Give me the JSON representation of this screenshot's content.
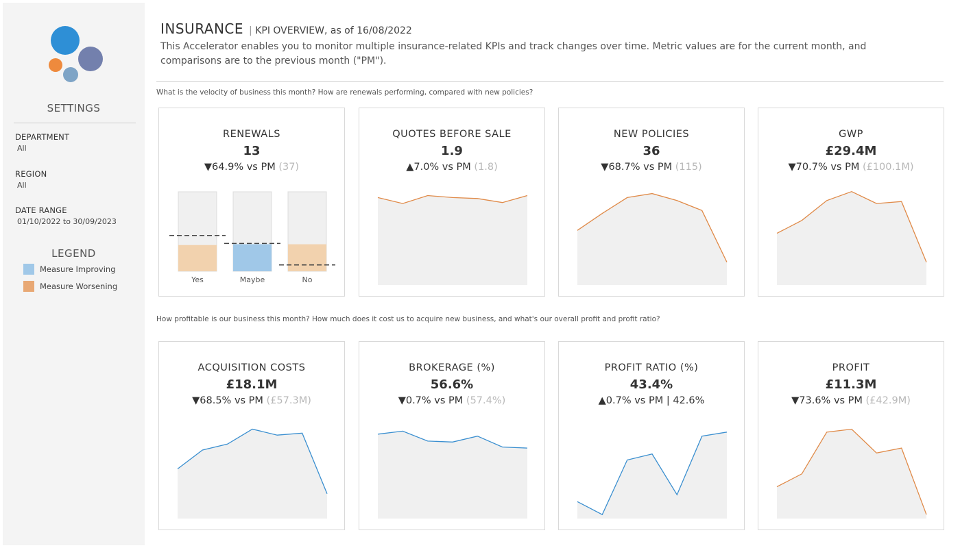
{
  "sidebar": {
    "settings_title": "SETTINGS",
    "filters": [
      {
        "label": "DEPARTMENT",
        "value": "All"
      },
      {
        "label": "REGION",
        "value": "All"
      },
      {
        "label": "DATE RANGE",
        "value": "01/10/2022 to 30/09/2023"
      }
    ],
    "legend_title": "LEGEND",
    "legend": [
      {
        "label": "Measure Improving",
        "color": "#a0c8e8"
      },
      {
        "label": "Measure Worsening",
        "color": "#e8a874"
      }
    ]
  },
  "header": {
    "title": "INSURANCE",
    "separator": "|",
    "subtitle": "KPI OVERVIEW, as of 16/08/2022",
    "description": "This Accelerator enables you to monitor multiple insurance-related KPIs and track changes over time. Metric values are for the current month, and comparisons are to the previous month (\"PM\")."
  },
  "questions": {
    "q1": "What is the velocity of business this month? How are renewals performing, compared with new policies?",
    "q2": "How profitable is our business this month? How much does it cost us to acquire new business, and what's our overall profit and profit ratio?"
  },
  "colors": {
    "improving_line": "#3a8fd0",
    "worsening_line": "#e08a48",
    "area_fill": "#f0f0f0",
    "bar_worse": "#f2d2ae",
    "bar_better": "#a0c8e8",
    "bar_track": "#f0f0f0"
  },
  "cards": [
    {
      "title": "RENEWALS",
      "value": "13",
      "arrow": "▼",
      "change": "64.9% vs PM",
      "prev": "(37)",
      "chart_data": {
        "type": "bar",
        "categories": [
          "Yes",
          "Maybe",
          "No"
        ],
        "values": [
          0.33,
          0.34,
          0.34
        ],
        "reference": [
          0.45,
          0.35,
          0.08
        ],
        "status": [
          "worsening",
          "improving",
          "worsening"
        ]
      }
    },
    {
      "title": "QUOTES BEFORE SALE",
      "value": "1.9",
      "arrow": "▲",
      "change": "7.0% vs PM",
      "prev": "(1.8)",
      "chart_data": {
        "type": "area",
        "trend": "worsening",
        "values": [
          0.88,
          0.82,
          0.9,
          0.88,
          0.87,
          0.83,
          0.9
        ]
      }
    },
    {
      "title": "NEW POLICIES",
      "value": "36",
      "arrow": "▼",
      "change": "68.7% vs PM",
      "prev": "(115)",
      "chart_data": {
        "type": "area",
        "trend": "worsening",
        "values": [
          0.55,
          0.72,
          0.88,
          0.92,
          0.85,
          0.75,
          0.23
        ]
      }
    },
    {
      "title": "GWP",
      "value": "£29.4M",
      "arrow": "▼",
      "change": "70.7% vs PM",
      "prev": "(£100.1M)",
      "chart_data": {
        "type": "area",
        "trend": "worsening",
        "values": [
          0.52,
          0.65,
          0.85,
          0.94,
          0.82,
          0.84,
          0.23
        ]
      }
    },
    {
      "title": "ACQUISITION COSTS",
      "value": "£18.1M",
      "arrow": "▼",
      "change": "68.5% vs PM",
      "prev": "(£57.3M)",
      "chart_data": {
        "type": "area",
        "trend": "improving",
        "values": [
          0.5,
          0.69,
          0.75,
          0.9,
          0.84,
          0.86,
          0.25
        ]
      }
    },
    {
      "title": "BROKERAGE (%)",
      "value": "56.6%",
      "arrow": "▼",
      "change": "0.7% vs PM",
      "prev": "(57.4%)",
      "chart_data": {
        "type": "area",
        "trend": "improving",
        "values": [
          0.85,
          0.88,
          0.78,
          0.77,
          0.83,
          0.72,
          0.71
        ]
      }
    },
    {
      "title": "PROFIT RATIO (%)",
      "value": "43.4%",
      "arrow": "▲",
      "change": "0.7% vs PM | 42.6%",
      "prev": "",
      "chart_data": {
        "type": "area",
        "trend": "improving",
        "values": [
          0.17,
          0.04,
          0.59,
          0.65,
          0.24,
          0.83,
          0.87
        ]
      }
    },
    {
      "title": "PROFIT",
      "value": "£11.3M",
      "arrow": "▼",
      "change": "73.6% vs PM",
      "prev": "(£42.9M)",
      "chart_data": {
        "type": "area",
        "trend": "worsening",
        "values": [
          0.32,
          0.45,
          0.87,
          0.9,
          0.66,
          0.71,
          0.04
        ]
      }
    }
  ]
}
